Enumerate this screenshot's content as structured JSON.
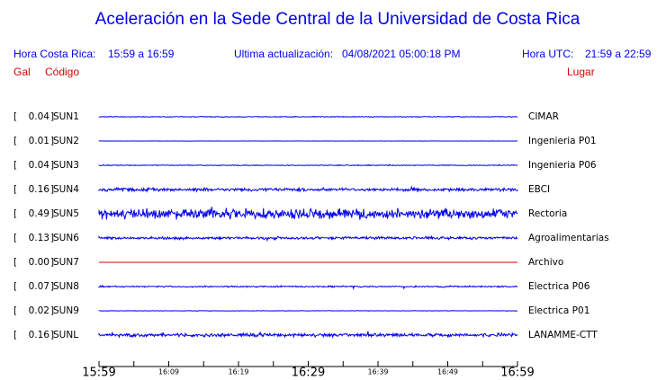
{
  "header": {
    "title": "Aceleración en la Sede Central de la Universidad de Costa Rica",
    "local_label": "Hora Costa Rica:",
    "local_range": "15:59 a 16:59",
    "update_label": "Ultima actualización:",
    "update_value": "04/08/2021 05:00:18 PM",
    "utc_label": "Hora UTC:",
    "utc_range": "21:59 a 22:59",
    "col_gal": "Gal",
    "col_code": "Código",
    "col_place": "Lugar"
  },
  "stations": [
    {
      "gal": "0.04",
      "code": "SUN1",
      "place": "CIMAR",
      "color": "#0000ee"
    },
    {
      "gal": "0.01",
      "code": "SUN2",
      "place": "Ingenieria P01",
      "color": "#0000ee"
    },
    {
      "gal": "0.04",
      "code": "SUN3",
      "place": "Ingenieria P06",
      "color": "#0000ee"
    },
    {
      "gal": "0.16",
      "code": "SUN4",
      "place": "EBCI",
      "color": "#0000ee"
    },
    {
      "gal": "0.49",
      "code": "SUN5",
      "place": "Rectoria",
      "color": "#0000ee"
    },
    {
      "gal": "0.13",
      "code": "SUN6",
      "place": "Agroalimentarias",
      "color": "#0000ee"
    },
    {
      "gal": "0.00",
      "code": "SUN7",
      "place": "Archivo",
      "color": "#dd0000"
    },
    {
      "gal": "0.07",
      "code": "SUN8",
      "place": "Electrica P06",
      "color": "#0000ee"
    },
    {
      "gal": "0.02",
      "code": "SUN9",
      "place": "Electrica P01",
      "color": "#0000ee"
    },
    {
      "gal": "0.16",
      "code": "SUNL",
      "place": "LANAMME-CTT",
      "color": "#0000ee"
    }
  ],
  "time_axis": {
    "labels": [
      "15:59",
      "16:09",
      "16:19",
      "16:29",
      "16:39",
      "16:49",
      "16:59"
    ],
    "major": [
      "15:59",
      "16:29",
      "16:59"
    ]
  }
}
